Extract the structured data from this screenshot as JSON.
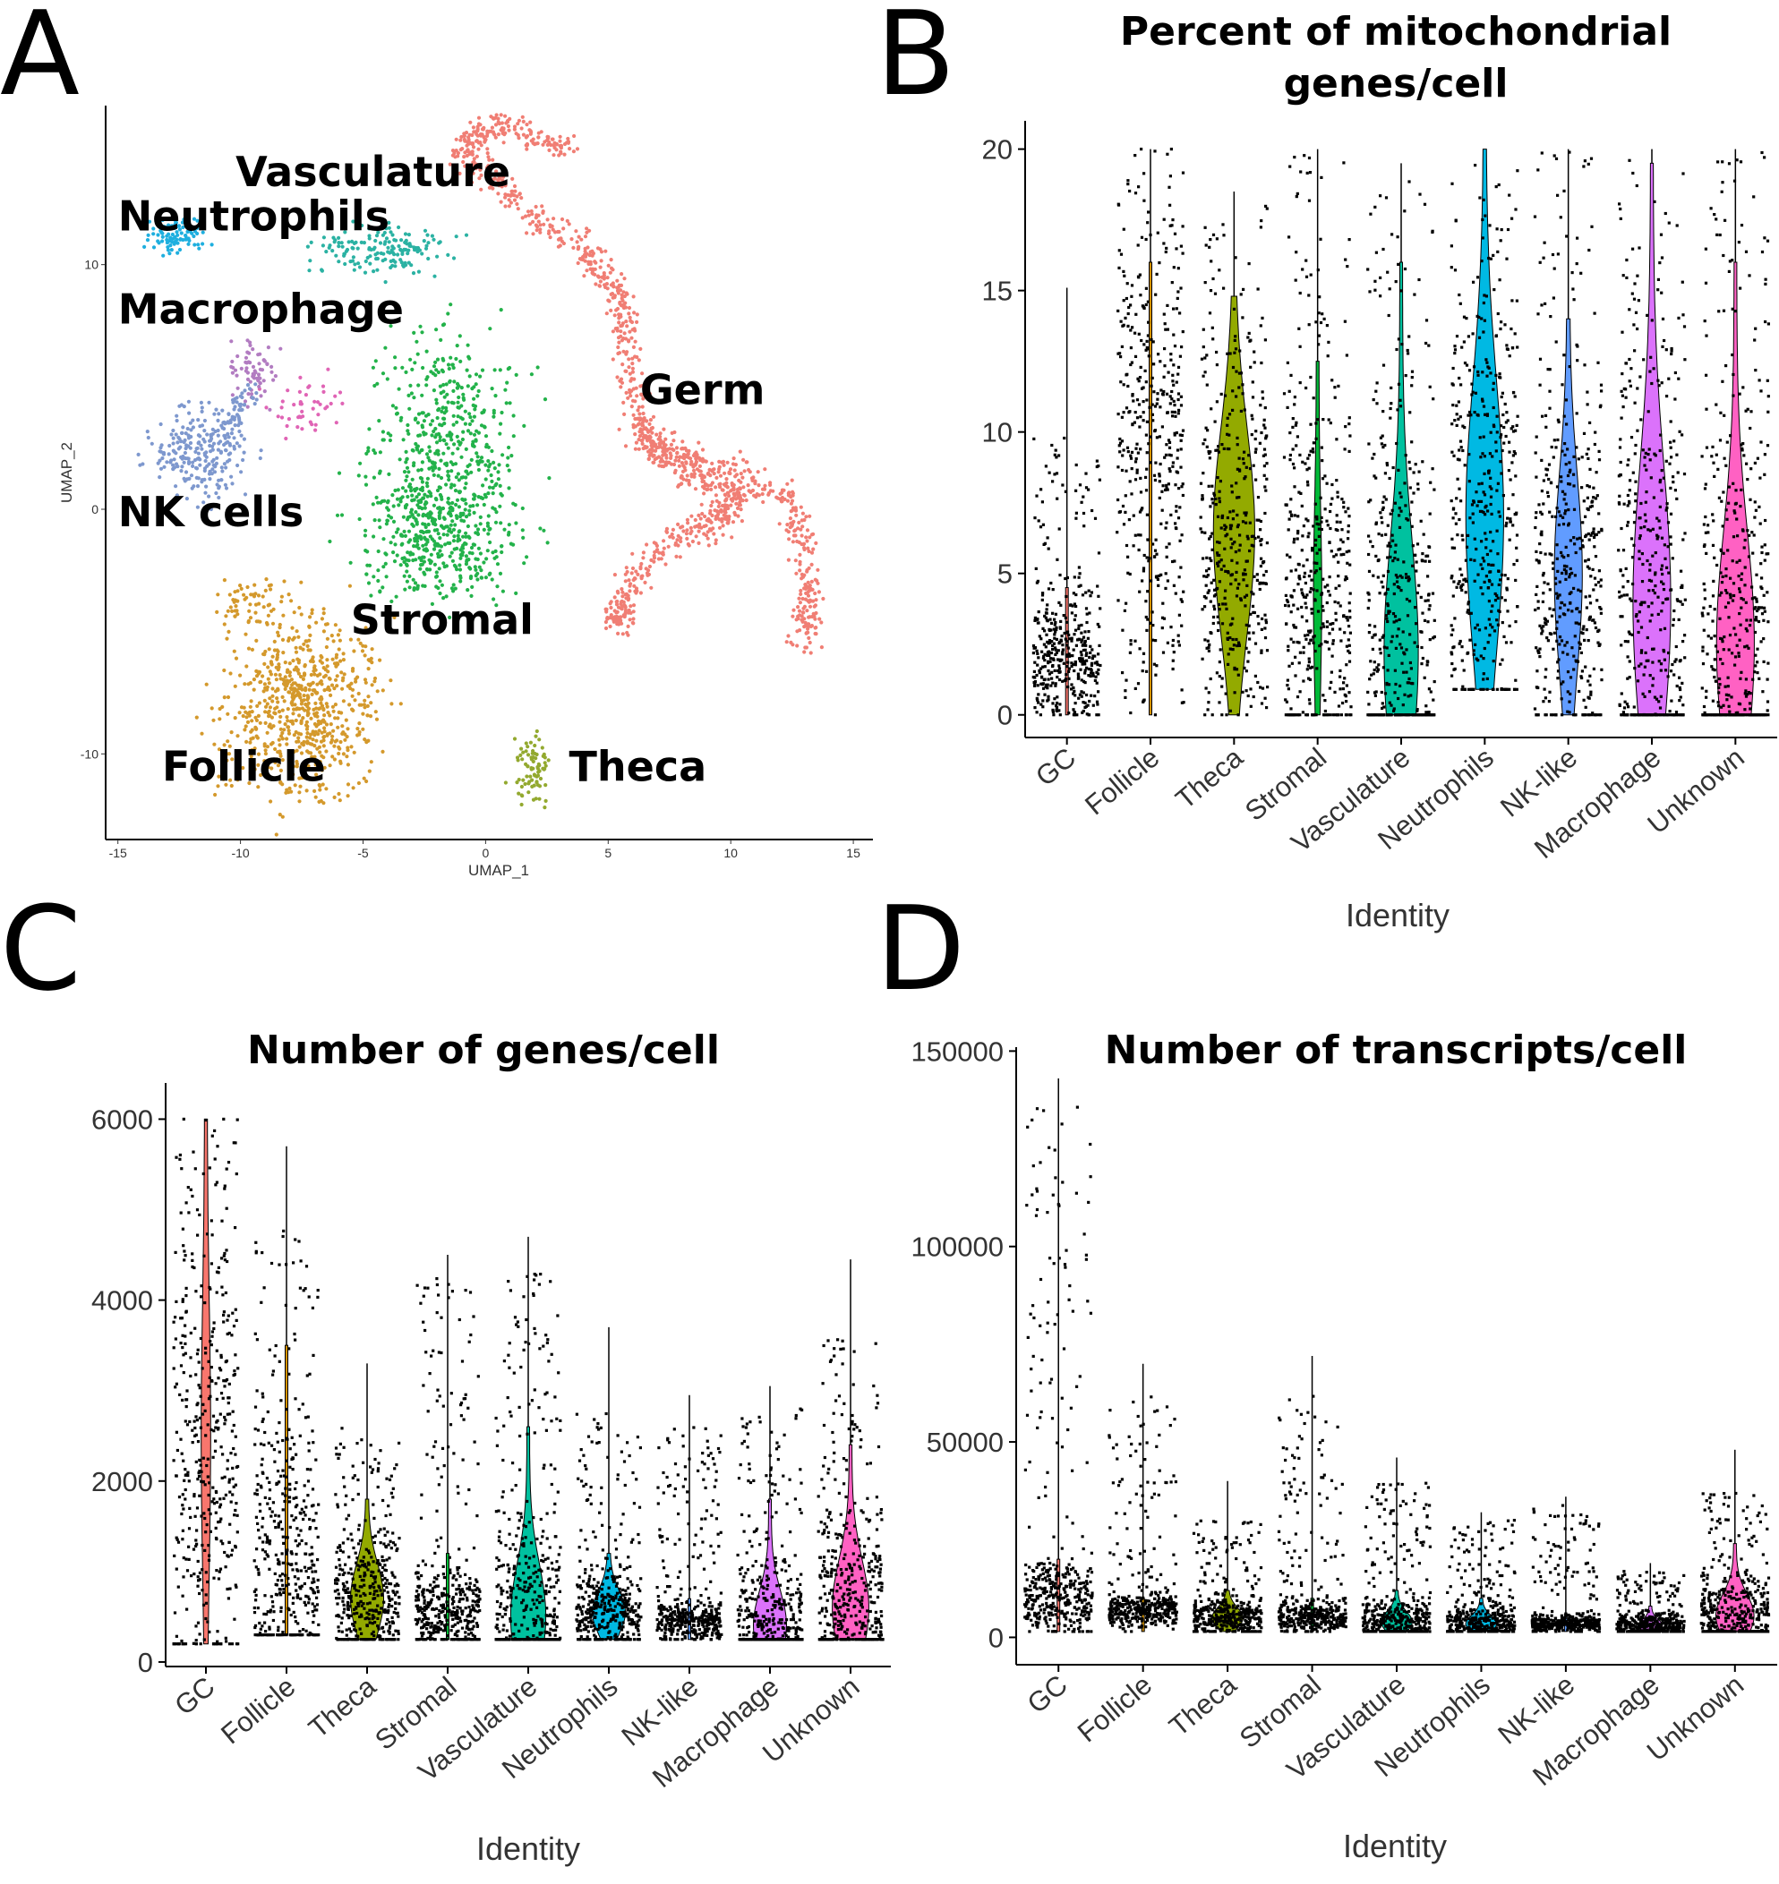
{
  "panel_labels": [
    "A",
    "B",
    "C",
    "D"
  ],
  "chart_data": [
    {
      "panel": "A",
      "type": "scatter",
      "title": "",
      "xlabel": "UMAP_1",
      "ylabel": "UMAP_2",
      "xlim": [
        -15.5,
        15.8
      ],
      "ylim": [
        -13.5,
        16.5
      ],
      "xticks": [
        -15,
        -10,
        -5,
        0,
        5,
        10,
        15
      ],
      "xtick_labels": [
        "-15",
        "-10",
        "-5",
        "0",
        "5",
        "10",
        "15"
      ],
      "yticks": [
        -10,
        0,
        10
      ],
      "ytick_labels": [
        "-10",
        "0",
        "10"
      ],
      "clusters": [
        {
          "name": "Germ",
          "color": "#F07E74",
          "label": {
            "x": 6.3,
            "y": 4.3
          }
        },
        {
          "name": "Vasculature",
          "color": "#2BB2A3",
          "label": {
            "x": -10.2,
            "y": 13.2
          }
        },
        {
          "name": "Neutrophils",
          "color": "#1FAFDF",
          "label": {
            "x": -15.0,
            "y": 11.4
          }
        },
        {
          "name": "Macrophage",
          "color": "#B27CC1",
          "label": {
            "x": -15.0,
            "y": 7.6
          }
        },
        {
          "name": "NK cells",
          "color": "#7E98CE",
          "label": {
            "x": -15.0,
            "y": -0.7
          }
        },
        {
          "name": "Stromal",
          "color": "#23B24A",
          "label": {
            "x": -5.5,
            "y": -5.1
          }
        },
        {
          "name": "Follicle",
          "color": "#D4992C",
          "label": {
            "x": -13.2,
            "y": -11.1
          }
        },
        {
          "name": "Theca",
          "color": "#93A92F",
          "label": {
            "x": 3.4,
            "y": -11.1
          }
        },
        {
          "name": "",
          "color": "#E064B5",
          "label": null
        }
      ],
      "centers": [
        {
          "cluster": "Germ",
          "x": 4.0,
          "y": 12.0
        },
        {
          "cluster": "Vasculature",
          "x": -4.3,
          "y": 10.6
        },
        {
          "cluster": "Neutrophils",
          "x": -12.6,
          "y": 11.2
        },
        {
          "cluster": "Macrophage",
          "x": -9.5,
          "y": 5.7
        },
        {
          "cluster": "NK cells",
          "x": -11.5,
          "y": 2.4
        },
        {
          "cluster": "Stromal",
          "x": -1.8,
          "y": 1.2
        },
        {
          "cluster": "Follicle",
          "x": -7.7,
          "y": -7.7
        },
        {
          "cluster": "Theca",
          "x": 1.8,
          "y": -10.5
        },
        {
          "cluster": "",
          "x": -7.2,
          "y": 4.2
        }
      ]
    },
    {
      "panel": "B",
      "type": "violin",
      "title": "Percent of mitochondrial genes/cell",
      "xlabel": "Identity",
      "ylabel": "",
      "ylim": [
        -0.8,
        21
      ],
      "yticks": [
        0,
        5,
        10,
        15,
        20
      ],
      "ytick_labels": [
        "0",
        "5",
        "10",
        "15",
        "20"
      ],
      "categories": [
        "GC",
        "Follicle",
        "Theca",
        "Stromal",
        "Vasculature",
        "Neutrophils",
        "NK-like",
        "Macrophage",
        "Unknown"
      ],
      "colors": [
        "#F8766D",
        "#D39200",
        "#93AA00",
        "#00BA38",
        "#00C19F",
        "#00B9E3",
        "#619CFF",
        "#DB72FB",
        "#FF61C3"
      ],
      "min": [
        0,
        0,
        0,
        0,
        0,
        0.9,
        0,
        0,
        0
      ],
      "median": [
        2.0,
        10.0,
        6.5,
        4.2,
        2.2,
        7.0,
        5.0,
        4.0,
        2.5
      ],
      "max": [
        15.1,
        20.0,
        18.5,
        20.0,
        19.5,
        20.0,
        20.0,
        20.0,
        20.0
      ],
      "violin_top": [
        4.5,
        16.0,
        14.8,
        12.5,
        16.0,
        20.0,
        14.0,
        19.5,
        16.0
      ],
      "violin_width": [
        0.0,
        0.0,
        0.55,
        0.08,
        0.45,
        0.5,
        0.36,
        0.5,
        0.5
      ],
      "points_top": [
        10,
        20,
        18,
        20,
        19,
        20,
        20,
        20,
        20
      ]
    },
    {
      "panel": "C",
      "type": "violin",
      "title": "Number of genes/cell",
      "xlabel": "Identity",
      "ylabel": "",
      "ylim": [
        -50,
        6400
      ],
      "yticks": [
        0,
        2000,
        4000,
        6000
      ],
      "ytick_labels": [
        "0",
        "2000",
        "4000",
        "6000"
      ],
      "categories": [
        "GC",
        "Follicle",
        "Theca",
        "Stromal",
        "Vasculature",
        "Neutrophils",
        "NK-like",
        "Macrophage",
        "Unknown"
      ],
      "colors": [
        "#F8766D",
        "#D39200",
        "#93AA00",
        "#00BA38",
        "#00C19F",
        "#00B9E3",
        "#619CFF",
        "#DB72FB",
        "#FF61C3"
      ],
      "min": [
        200,
        300,
        250,
        250,
        250,
        250,
        250,
        250,
        250
      ],
      "median": [
        2500,
        1000,
        700,
        550,
        500,
        550,
        450,
        400,
        600
      ],
      "max": [
        6000,
        5700,
        3300,
        4500,
        4700,
        3700,
        2950,
        3050,
        4450
      ],
      "violin_top": [
        6000,
        3500,
        1800,
        1200,
        2600,
        1200,
        700,
        1800,
        2400
      ],
      "violin_width": [
        0.1,
        0.0,
        0.45,
        0.0,
        0.48,
        0.45,
        0.0,
        0.45,
        0.5
      ],
      "points_top": [
        6000,
        4800,
        2600,
        4300,
        4300,
        2800,
        2600,
        2800,
        3600
      ]
    },
    {
      "panel": "D",
      "type": "violin",
      "title": "Number of transcripts/cell",
      "xlabel": "Identity",
      "ylabel": "",
      "ylim": [
        -7000,
        151000
      ],
      "yticks": [
        0,
        50000,
        100000,
        150000
      ],
      "ytick_labels": [
        "0",
        "50000",
        "100000",
        "150000"
      ],
      "categories": [
        "GC",
        "Follicle",
        "Theca",
        "Stromal",
        "Vasculature",
        "Neutrophils",
        "NK-like",
        "Macrophage",
        "Unknown"
      ],
      "colors": [
        "#F8766D",
        "#D39200",
        "#93AA00",
        "#00BA38",
        "#00C19F",
        "#00B9E3",
        "#619CFF",
        "#DB72FB",
        "#FF61C3"
      ],
      "min": [
        1500,
        1500,
        1500,
        1500,
        1500,
        1500,
        1500,
        1500,
        1500
      ],
      "median": [
        10000,
        7000,
        5000,
        5000,
        4000,
        3500,
        3500,
        3000,
        5500
      ],
      "max": [
        143000,
        70000,
        40000,
        72000,
        46000,
        32000,
        36000,
        19000,
        48000
      ],
      "violin_top": [
        20000,
        10000,
        12000,
        10000,
        12000,
        10000,
        6000,
        8000,
        24000
      ],
      "violin_width": [
        0.0,
        0.0,
        0.4,
        0.0,
        0.4,
        0.4,
        0.0,
        0.3,
        0.5
      ],
      "points_top": [
        140000,
        62000,
        30000,
        62000,
        40000,
        30000,
        34000,
        17000,
        38000
      ]
    }
  ]
}
